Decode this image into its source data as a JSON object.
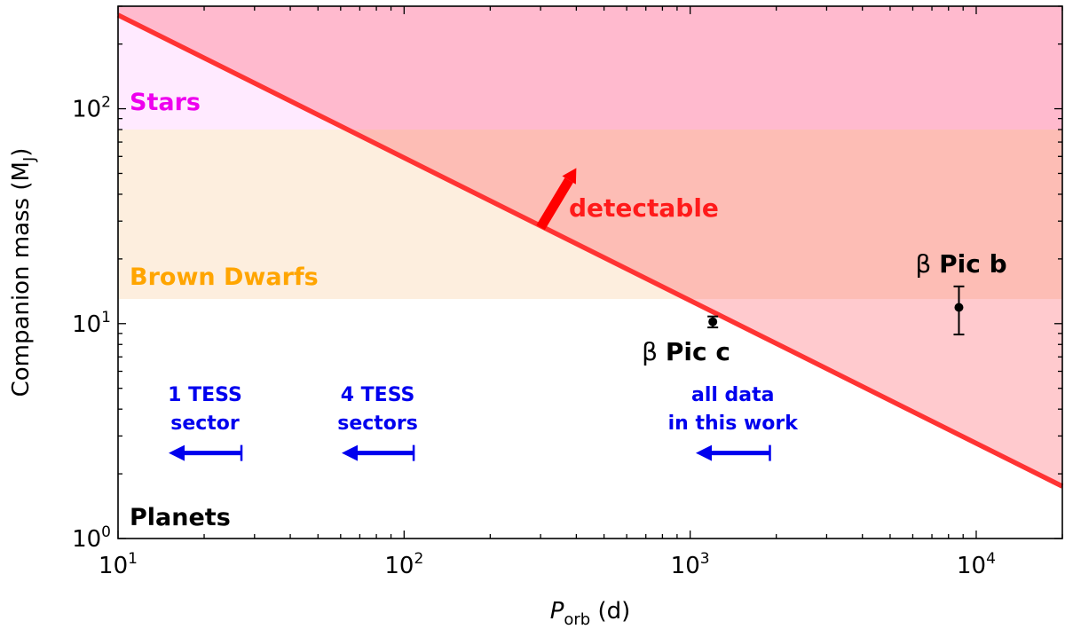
{
  "chart_data": {
    "type": "scatter",
    "xscale": "log",
    "yscale": "log",
    "xlim": [
      10,
      20000
    ],
    "ylim": [
      1,
      300
    ],
    "xlabel_main": "P",
    "xlabel_sub": "orb",
    "xlabel_unit": "(d)",
    "ylabel_main": "Companion mass (M",
    "ylabel_sub": "J",
    "ylabel_close": ")",
    "x_ticks": [
      {
        "value": 10,
        "base": "10",
        "exp": "1"
      },
      {
        "value": 100,
        "base": "10",
        "exp": "2"
      },
      {
        "value": 1000,
        "base": "10",
        "exp": "3"
      },
      {
        "value": 10000,
        "base": "10",
        "exp": "4"
      }
    ],
    "y_ticks": [
      {
        "value": 1,
        "base": "10",
        "exp": "0"
      },
      {
        "value": 10,
        "base": "10",
        "exp": "1"
      },
      {
        "value": 100,
        "base": "10",
        "exp": "2"
      }
    ],
    "regions": [
      {
        "name": "Stars",
        "ymin": 80,
        "ymax": 300,
        "color": "#ffeaff",
        "label_color": "#ee00ee"
      },
      {
        "name": "Brown Dwarfs",
        "ymin": 13,
        "ymax": 80,
        "color": "#fdeede",
        "label_color": "#ffa500"
      },
      {
        "name": "Planets",
        "ymin": 1,
        "ymax": 13,
        "color": "#ffffff",
        "label_color": "#000000"
      }
    ],
    "detection_limit": {
      "x": [
        10,
        20000
      ],
      "y": [
        273,
        1.75
      ],
      "color": "#ff3333",
      "fill_color": "#ff2b3c",
      "fill_opacity": 0.25,
      "label": "detectable"
    },
    "points": [
      {
        "name": "β Pic c",
        "x": 1200,
        "y": 10.2,
        "yerr_low": 0.6,
        "yerr_high": 0.6
      },
      {
        "name": "β Pic b",
        "x": 8700,
        "y": 11.9,
        "yerr_low": 3.0,
        "yerr_high": 3.0
      }
    ],
    "baseline_arrows": [
      {
        "label_line1": "1 TESS",
        "label_line2": "sector",
        "x_end": 27,
        "y": 2.5,
        "color": "#0000ee"
      },
      {
        "label_line1": "4 TESS",
        "label_line2": "sectors",
        "x_end": 108,
        "y": 2.5,
        "color": "#0000ee"
      },
      {
        "label_line1": "all data",
        "label_line2": "in this work",
        "x_end": 1900,
        "y": 2.5,
        "color": "#0000ee"
      }
    ]
  }
}
